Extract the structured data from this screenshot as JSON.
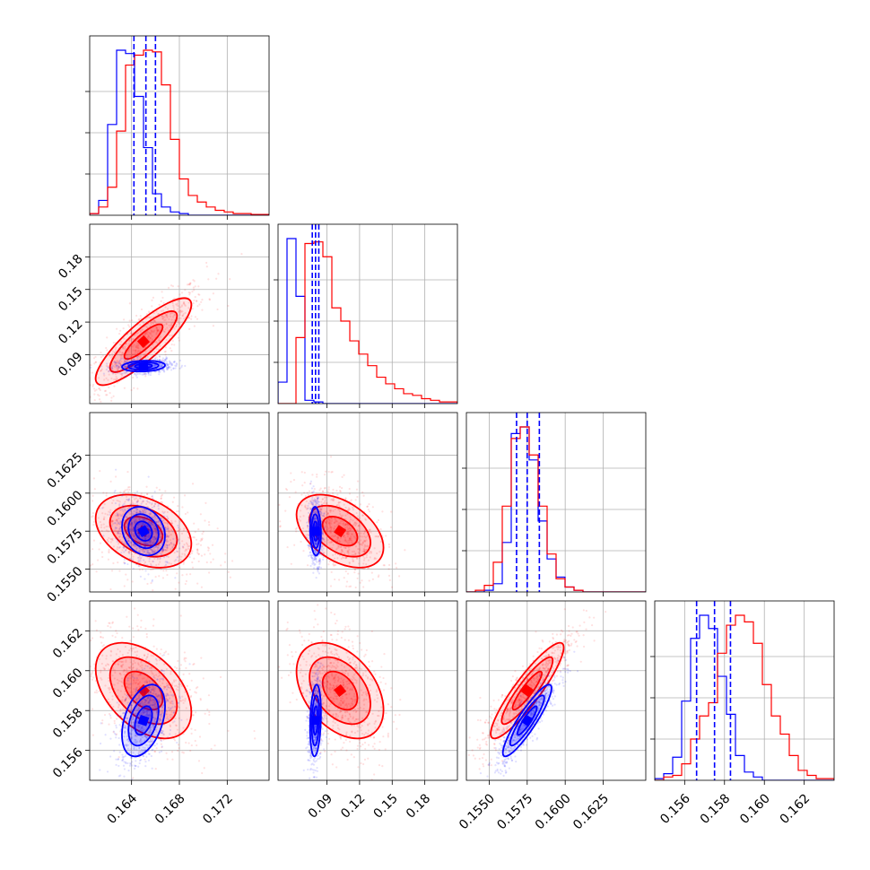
{
  "chart_data": {
    "type": "corner",
    "title": "",
    "grid": true,
    "series": [
      {
        "color": "#0000ff"
      },
      {
        "color": "#ff0000"
      }
    ],
    "parameters": [
      {
        "axis_min": 0.1605,
        "axis_max": 0.1755,
        "ticks": [
          0.164,
          0.168,
          0.172
        ],
        "tick_labels": [
          "0.164",
          "0.168",
          "0.172"
        ],
        "quantiles": [
          0.1642,
          0.1652,
          0.166
        ],
        "hist_blue": [
          0.01,
          0.09,
          0.55,
          1.0,
          0.98,
          0.72,
          0.41,
          0.13,
          0.05,
          0.02,
          0.01,
          0,
          0,
          0,
          0,
          0,
          0,
          0,
          0,
          0
        ],
        "hist_red": [
          0.01,
          0.05,
          0.17,
          0.51,
          0.91,
          0.97,
          1.0,
          0.99,
          0.79,
          0.46,
          0.22,
          0.12,
          0.08,
          0.05,
          0.03,
          0.02,
          0.01,
          0.01,
          0.005,
          0.005
        ]
      },
      {
        "axis_min": 0.045,
        "axis_max": 0.21,
        "ticks": [
          0.09,
          0.12,
          0.15,
          0.18
        ],
        "tick_labels": [
          "0.09",
          "0.12",
          "0.15",
          "0.18"
        ],
        "quantiles": [
          0.0765,
          0.0795,
          0.0825
        ],
        "hist_blue": [
          0.13,
          1.0,
          0.65,
          0.02,
          0.01,
          0,
          0,
          0,
          0,
          0,
          0,
          0,
          0,
          0,
          0,
          0,
          0,
          0,
          0,
          0
        ],
        "hist_red": [
          0,
          0,
          0.4,
          0.97,
          0.98,
          0.89,
          0.58,
          0.5,
          0.38,
          0.3,
          0.23,
          0.16,
          0.12,
          0.09,
          0.06,
          0.05,
          0.03,
          0.02,
          0.01,
          0.01
        ]
      },
      {
        "axis_min": 0.1535,
        "axis_max": 0.1653,
        "ticks": [
          0.155,
          0.1575,
          0.16,
          0.1625
        ],
        "tick_labels": [
          "0.1550",
          "0.1575",
          "0.1600",
          "0.1625"
        ],
        "quantiles": [
          0.1568,
          0.1575,
          0.1583
        ],
        "hist_blue": [
          0,
          0,
          0.01,
          0.05,
          0.3,
          0.96,
          1.0,
          0.8,
          0.43,
          0.2,
          0.09,
          0.03,
          0.01,
          0,
          0,
          0,
          0,
          0,
          0,
          0
        ],
        "hist_red": [
          0,
          0.01,
          0.04,
          0.18,
          0.52,
          0.93,
          1.0,
          0.83,
          0.52,
          0.23,
          0.08,
          0.03,
          0.01,
          0,
          0,
          0,
          0,
          0,
          0,
          0
        ]
      },
      {
        "axis_min": 0.1545,
        "axis_max": 0.1635,
        "ticks": [
          0.156,
          0.158,
          0.16,
          0.162
        ],
        "tick_labels": [
          "0.156",
          "0.158",
          "0.160",
          "0.162"
        ],
        "quantiles": [
          0.1566,
          0.1575,
          0.1583
        ],
        "hist_blue": [
          0.01,
          0.04,
          0.14,
          0.48,
          0.86,
          1.0,
          0.92,
          0.63,
          0.4,
          0.15,
          0.05,
          0.02,
          0,
          0,
          0,
          0,
          0,
          0,
          0,
          0
        ],
        "hist_red": [
          0,
          0.02,
          0.03,
          0.1,
          0.25,
          0.39,
          0.47,
          0.77,
          0.94,
          1.0,
          0.96,
          0.83,
          0.58,
          0.39,
          0.28,
          0.15,
          0.06,
          0.03,
          0.01,
          0.01
        ]
      }
    ],
    "y_axis_labels": {
      "row1": [
        "0.09",
        "0.12",
        "0.15",
        "0.18"
      ],
      "row2": [
        "0.1550",
        "0.1575",
        "0.1600",
        "0.1625"
      ],
      "row3": [
        "0.156",
        "0.158",
        "0.160",
        "0.162"
      ]
    },
    "distributions": {
      "blue": {
        "mean": [
          0.165,
          0.0795,
          0.1575,
          0.1575
        ],
        "sd": [
          0.0009,
          0.0025,
          0.0008,
          0.0009
        ],
        "corr": [
          [
            1,
            0.15,
            -0.2,
            0.4
          ],
          [
            0.15,
            1,
            -0.1,
            0.2
          ],
          [
            -0.2,
            -0.1,
            1,
            0.9
          ],
          [
            0.4,
            0.2,
            0.9,
            1
          ]
        ]
      },
      "red": {
        "mean": [
          0.165,
          0.102,
          0.1575,
          0.159
        ],
        "sd": [
          0.002,
          0.02,
          0.0012,
          0.0012
        ],
        "corr": [
          [
            1,
            0.85,
            -0.35,
            -0.45
          ],
          [
            0.85,
            1,
            -0.45,
            -0.4
          ],
          [
            -0.35,
            -0.45,
            1,
            0.9
          ],
          [
            -0.45,
            -0.4,
            0.9,
            1
          ]
        ]
      }
    }
  }
}
